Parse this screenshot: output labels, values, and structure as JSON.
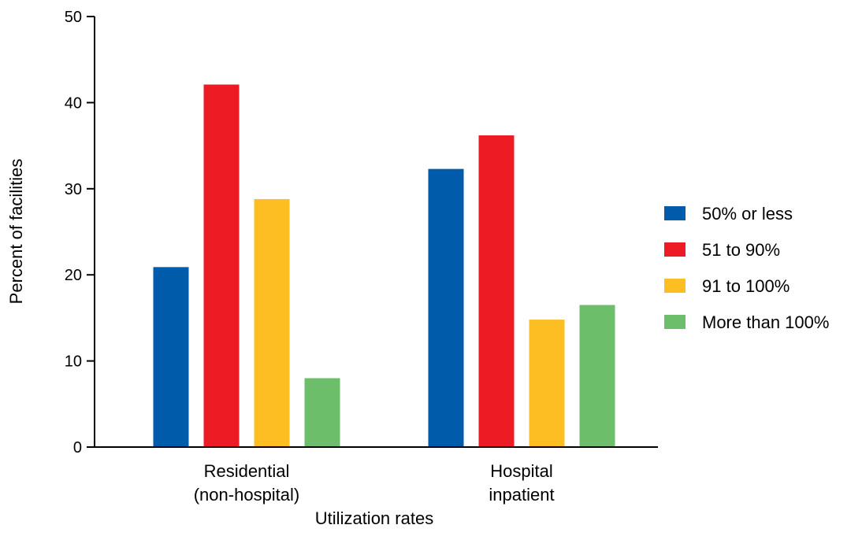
{
  "chart_data": {
    "type": "bar",
    "title": "",
    "xlabel": "Utilization rates",
    "ylabel": "Percent of facilities",
    "ylim": [
      0,
      50
    ],
    "yticks": [
      0,
      10,
      20,
      30,
      40,
      50
    ],
    "grid": false,
    "legend_position": "right",
    "categories": [
      {
        "lines": [
          "Residential",
          "(non-hospital)"
        ]
      },
      {
        "lines": [
          "Hospital",
          "inpatient"
        ]
      }
    ],
    "series": [
      {
        "name": "50% or less",
        "color": "#005BAA",
        "values": [
          20.9,
          32.3
        ]
      },
      {
        "name": "51 to 90%",
        "color": "#ED1C24",
        "values": [
          42.1,
          36.2
        ]
      },
      {
        "name": "91 to 100%",
        "color": "#FDBE23",
        "values": [
          28.8,
          14.8
        ]
      },
      {
        "name": "More than 100%",
        "color": "#6DBE6A",
        "values": [
          8.0,
          16.5
        ]
      }
    ]
  }
}
